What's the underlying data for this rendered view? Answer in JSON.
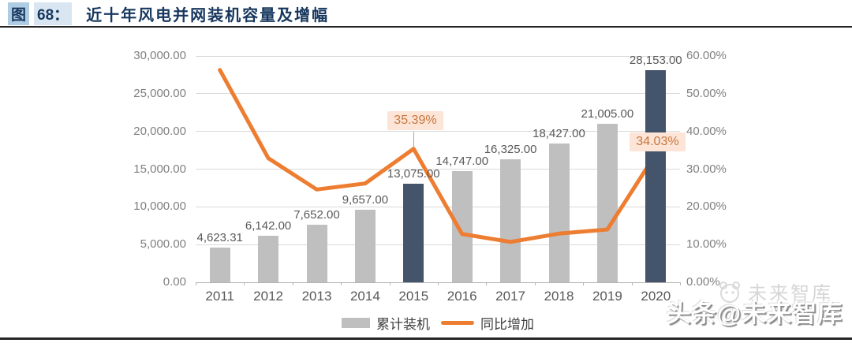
{
  "header": {
    "figure_label": "图",
    "figure_number": "68：",
    "title": "近十年风电并网装机容量及增幅"
  },
  "chart_data": {
    "type": "combo-bar-line",
    "categories": [
      "2011",
      "2012",
      "2013",
      "2014",
      "2015",
      "2016",
      "2017",
      "2018",
      "2019",
      "2020"
    ],
    "series": [
      {
        "name": "累计装机",
        "type": "bar",
        "values": [
          4623.31,
          6142,
          7652,
          9657,
          13075,
          14747,
          16325,
          18427,
          21005,
          28153
        ],
        "value_labels": [
          "4,623.31",
          "6,142.00",
          "7,652.00",
          "9,657.00",
          "13,075.00",
          "14,747.00",
          "16,325.00",
          "18,427.00",
          "21,005.00",
          "28,153.00"
        ],
        "color_default": "#bfbfbf",
        "color_highlight": "#44546a",
        "highlight_indices": [
          4,
          9
        ]
      },
      {
        "name": "同比增加",
        "type": "line",
        "values_pct": [
          56.3,
          32.9,
          24.6,
          26.2,
          35.39,
          12.8,
          10.7,
          12.9,
          14.0,
          34.03
        ],
        "color": "#ed7d31"
      }
    ],
    "left_axis": {
      "ticks": [
        "30,000.00",
        "25,000.00",
        "20,000.00",
        "15,000.00",
        "10,000.00",
        "5,000.00",
        "0.00"
      ],
      "min": 0,
      "max": 30000
    },
    "right_axis": {
      "ticks": [
        "60.00%",
        "50.00%",
        "40.00%",
        "30.00%",
        "20.00%",
        "10.00%",
        "0.00%"
      ],
      "min": 0,
      "max": 60
    },
    "callouts": [
      {
        "index": 4,
        "text": "35.39%",
        "bg": "#fce4d6",
        "fg": "#c9763d"
      },
      {
        "index": 9,
        "text": "34.03%",
        "bg": "#fce4d6",
        "fg": "#c9763d"
      }
    ],
    "legend": [
      {
        "label": "累计装机",
        "swatch": "bar",
        "color": "#bfbfbf"
      },
      {
        "label": "同比增加",
        "swatch": "line",
        "color": "#ed7d31"
      }
    ],
    "grid": true,
    "legend_position": "bottom-center"
  },
  "watermark": {
    "main": "头条@未来智库",
    "ghost": "未来智库"
  }
}
